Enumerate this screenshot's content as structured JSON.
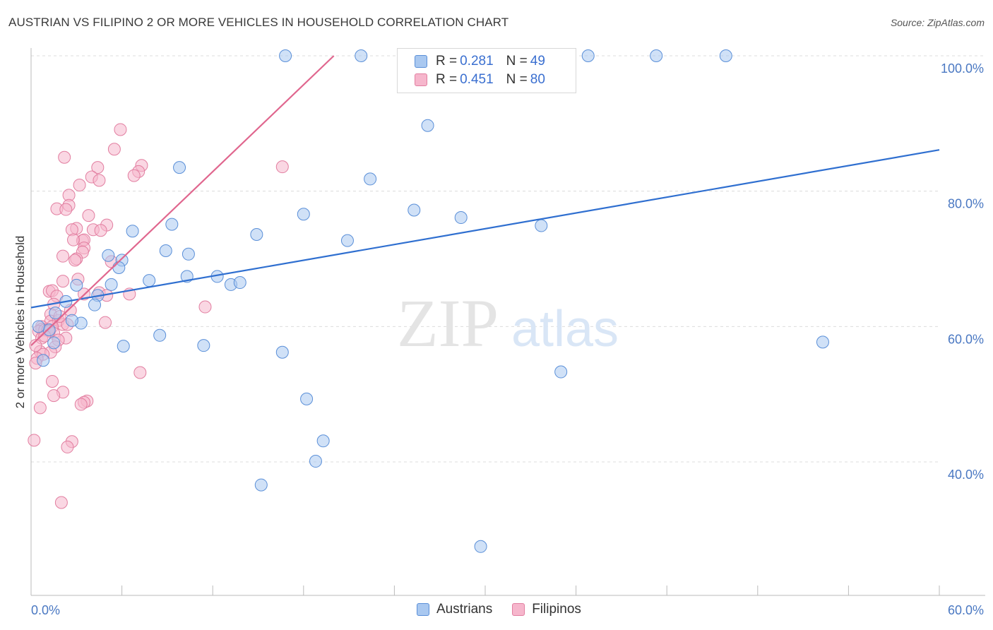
{
  "header": {
    "title": "AUSTRIAN VS FILIPINO 2 OR MORE VEHICLES IN HOUSEHOLD CORRELATION CHART",
    "source": "Source: ZipAtlas.com"
  },
  "legend": {
    "austrians": {
      "r_label": "R =",
      "r_value": "0.281",
      "n_label": "N =",
      "n_value": "49"
    },
    "filipinos": {
      "r_label": "R =",
      "r_value": "0.451",
      "n_label": "N =",
      "n_value": "80"
    }
  },
  "bottom_legend": {
    "austrians": "Austrians",
    "filipinos": "Filipinos"
  },
  "watermark": {
    "zip": "ZIP",
    "atlas": "atlas"
  },
  "colors": {
    "austrians_fill": "#a9c8f0",
    "austrians_stroke": "#5a8fd8",
    "austrians_line": "#2f6fd0",
    "filipinos_fill": "#f6b6cc",
    "filipinos_stroke": "#e27ea0",
    "filipinos_line": "#e0668e",
    "axis_tick_text": "#4a78c2"
  },
  "chart_data": {
    "type": "scatter",
    "title": "AUSTRIAN VS FILIPINO 2 OR MORE VEHICLES IN HOUSEHOLD CORRELATION CHART",
    "xlabel": "",
    "ylabel": "2 or more Vehicles in Household",
    "xlim": [
      0,
      60
    ],
    "ylim": [
      20,
      102
    ],
    "x_tick_labels": [
      "0.0%",
      "60.0%"
    ],
    "y_ticks": [
      40,
      60,
      80,
      100
    ],
    "y_tick_labels": [
      "40.0%",
      "60.0%",
      "80.0%",
      "100.0%"
    ],
    "grid": true,
    "series": [
      {
        "name": "Austrians",
        "r": 0.281,
        "n": 49,
        "trend": [
          [
            0,
            62.8
          ],
          [
            60,
            86.1
          ]
        ],
        "points": [
          [
            16.8,
            100
          ],
          [
            21.8,
            100
          ],
          [
            36.8,
            100
          ],
          [
            41.3,
            100
          ],
          [
            45.9,
            100
          ],
          [
            26.2,
            89.7
          ],
          [
            9.8,
            83.5
          ],
          [
            22.4,
            81.8
          ],
          [
            25.3,
            77.2
          ],
          [
            18.0,
            76.6
          ],
          [
            28.4,
            76.1
          ],
          [
            9.3,
            75.1
          ],
          [
            33.7,
            74.9
          ],
          [
            6.7,
            74.1
          ],
          [
            14.9,
            73.6
          ],
          [
            20.9,
            72.7
          ],
          [
            8.9,
            71.2
          ],
          [
            5.1,
            70.5
          ],
          [
            10.4,
            70.7
          ],
          [
            6.0,
            69.8
          ],
          [
            5.8,
            68.7
          ],
          [
            10.3,
            67.4
          ],
          [
            12.3,
            67.4
          ],
          [
            7.8,
            66.8
          ],
          [
            13.2,
            66.2
          ],
          [
            3.0,
            66.1
          ],
          [
            13.8,
            66.5
          ],
          [
            5.3,
            66.2
          ],
          [
            4.4,
            64.6
          ],
          [
            2.3,
            63.7
          ],
          [
            4.2,
            63.2
          ],
          [
            3.3,
            60.5
          ],
          [
            2.7,
            60.9
          ],
          [
            8.5,
            58.7
          ],
          [
            1.5,
            57.6
          ],
          [
            6.1,
            57.1
          ],
          [
            11.4,
            57.2
          ],
          [
            16.6,
            56.2
          ],
          [
            52.3,
            57.7
          ],
          [
            35.0,
            53.3
          ],
          [
            18.2,
            49.3
          ],
          [
            19.3,
            43.1
          ],
          [
            18.8,
            40.1
          ],
          [
            15.2,
            36.6
          ],
          [
            29.7,
            27.5
          ],
          [
            0.8,
            55.0
          ],
          [
            1.2,
            59.5
          ],
          [
            1.6,
            62.0
          ],
          [
            0.5,
            60.0
          ]
        ]
      },
      {
        "name": "Filipinos",
        "r": 0.451,
        "n": 80,
        "trend": [
          [
            0,
            57.2
          ],
          [
            20,
            100
          ]
        ],
        "points": [
          [
            5.9,
            89.1
          ],
          [
            5.5,
            86.2
          ],
          [
            2.2,
            85.0
          ],
          [
            16.6,
            83.6
          ],
          [
            4.4,
            83.5
          ],
          [
            7.3,
            83.8
          ],
          [
            7.1,
            82.9
          ],
          [
            4.0,
            82.1
          ],
          [
            6.8,
            82.3
          ],
          [
            4.5,
            81.6
          ],
          [
            3.2,
            80.9
          ],
          [
            2.5,
            79.4
          ],
          [
            2.5,
            77.9
          ],
          [
            1.7,
            77.4
          ],
          [
            2.3,
            77.3
          ],
          [
            3.8,
            76.4
          ],
          [
            5.0,
            75.0
          ],
          [
            3.0,
            74.5
          ],
          [
            2.7,
            74.3
          ],
          [
            4.1,
            74.3
          ],
          [
            4.6,
            74.2
          ],
          [
            3.4,
            72.7
          ],
          [
            3.5,
            72.8
          ],
          [
            2.8,
            72.8
          ],
          [
            3.5,
            71.6
          ],
          [
            3.4,
            71.0
          ],
          [
            2.1,
            70.4
          ],
          [
            3.0,
            70.0
          ],
          [
            2.9,
            69.8
          ],
          [
            5.3,
            69.6
          ],
          [
            3.1,
            67.0
          ],
          [
            2.1,
            66.7
          ],
          [
            4.5,
            65.0
          ],
          [
            3.5,
            64.8
          ],
          [
            1.2,
            65.2
          ],
          [
            1.4,
            65.3
          ],
          [
            6.5,
            64.8
          ],
          [
            5.0,
            64.6
          ],
          [
            1.7,
            64.5
          ],
          [
            1.5,
            63.3
          ],
          [
            11.5,
            62.9
          ],
          [
            1.3,
            61.8
          ],
          [
            1.3,
            60.8
          ],
          [
            1.8,
            60.9
          ],
          [
            4.9,
            60.6
          ],
          [
            2.1,
            60.3
          ],
          [
            2.4,
            60.3
          ],
          [
            1.4,
            60.0
          ],
          [
            0.7,
            60.0
          ],
          [
            0.7,
            59.6
          ],
          [
            0.5,
            59.3
          ],
          [
            0.9,
            59.5
          ],
          [
            1.1,
            59.5
          ],
          [
            1.5,
            59.0
          ],
          [
            1.2,
            59.3
          ],
          [
            2.3,
            58.3
          ],
          [
            1.8,
            58.0
          ],
          [
            0.7,
            58.3
          ],
          [
            1.6,
            57.0
          ],
          [
            0.6,
            56.3
          ],
          [
            1.3,
            56.2
          ],
          [
            0.8,
            55.9
          ],
          [
            0.4,
            55.3
          ],
          [
            0.3,
            54.6
          ],
          [
            7.2,
            53.2
          ],
          [
            1.4,
            51.9
          ],
          [
            2.1,
            50.3
          ],
          [
            1.5,
            49.8
          ],
          [
            3.7,
            49.0
          ],
          [
            3.5,
            48.8
          ],
          [
            3.3,
            48.5
          ],
          [
            0.6,
            48.0
          ],
          [
            0.2,
            43.2
          ],
          [
            2.7,
            43.0
          ],
          [
            2.4,
            42.2
          ],
          [
            2.0,
            34.0
          ],
          [
            0.3,
            57.2
          ],
          [
            0.9,
            58.6
          ],
          [
            1.9,
            61.5
          ],
          [
            2.6,
            62.4
          ]
        ]
      }
    ]
  }
}
